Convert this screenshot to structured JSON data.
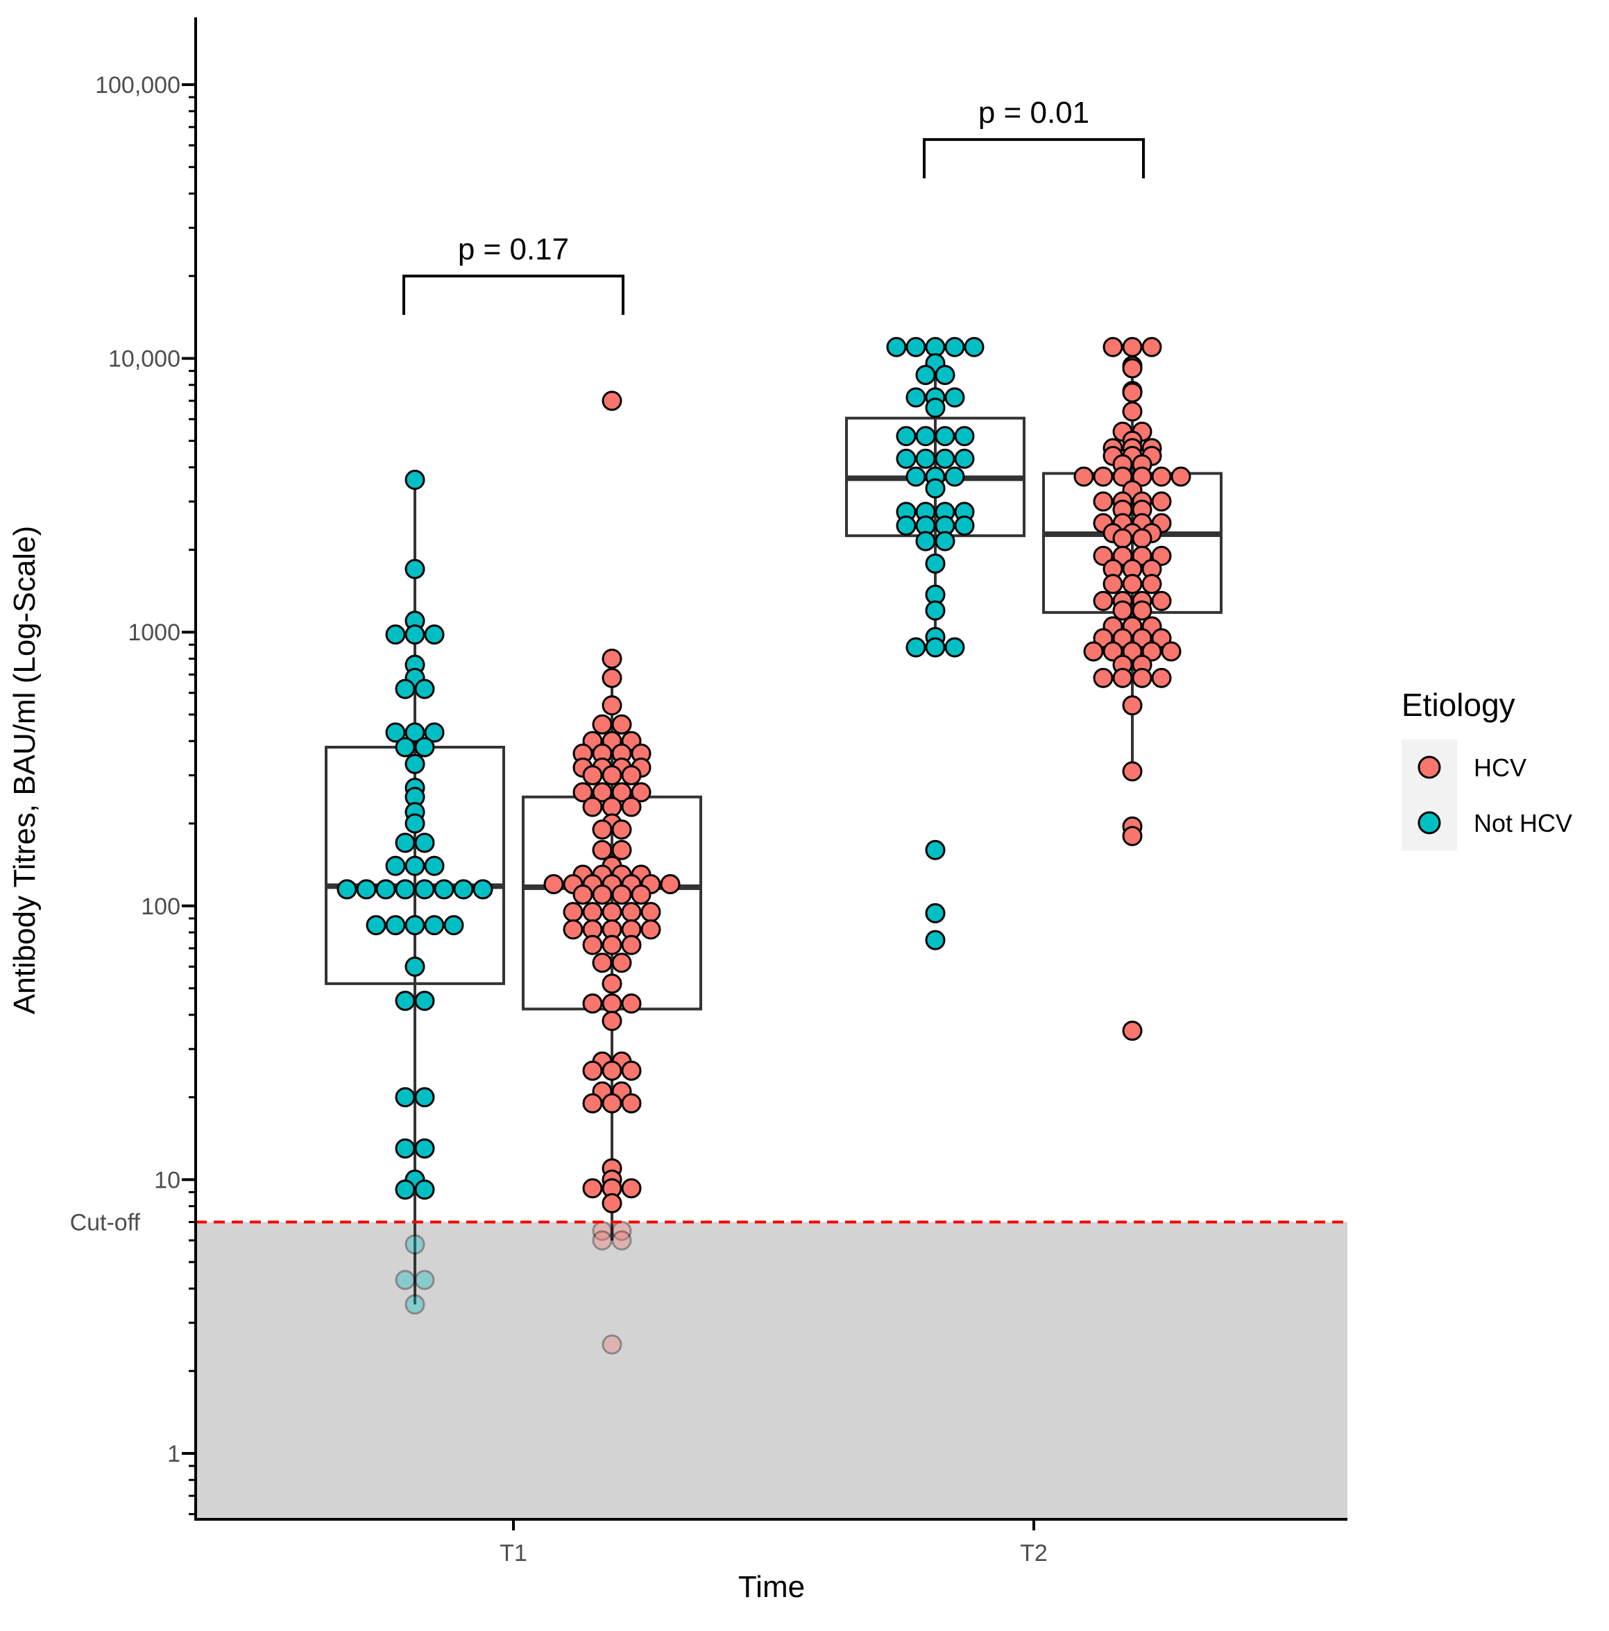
{
  "chart_data": {
    "type": "box-dotplot",
    "title": "",
    "xlabel": "Time",
    "ylabel": "Antibody Titres, BAU/ml (Log-Scale)",
    "yscale": "log10",
    "ylim": [
      0.55,
      180000
    ],
    "categories": [
      "T1",
      "T2"
    ],
    "y_ticks": [
      {
        "value": 1,
        "label": "1"
      },
      {
        "value": 10,
        "label": "10"
      },
      {
        "value": 100,
        "label": "100"
      },
      {
        "value": 1000,
        "label": "1000"
      },
      {
        "value": 10000,
        "label": "10,000"
      },
      {
        "value": 100000,
        "label": "100,000"
      }
    ],
    "cutoff": {
      "value": 7,
      "label": "Cut-off",
      "color": "#ff0000"
    },
    "below_cutoff_shade": "#d3d3d3",
    "legend": {
      "title": "Etiology",
      "entries": [
        {
          "label": "HCV",
          "color": "#f8766d"
        },
        {
          "label": "Not HCV",
          "color": "#00bfc4"
        }
      ]
    },
    "groups": [
      {
        "time": "T1",
        "etiology": "Not HCV",
        "box": {
          "q1": 52,
          "median": 118,
          "q3": 380,
          "whisker_low": 3.5,
          "whisker_high": 3600
        },
        "points": [
          3600,
          1700,
          1100,
          980,
          980,
          980,
          760,
          680,
          620,
          620,
          430,
          430,
          430,
          380,
          380,
          330,
          270,
          250,
          220,
          200,
          170,
          170,
          140,
          140,
          140,
          115,
          115,
          115,
          115,
          115,
          115,
          115,
          115,
          85,
          85,
          85,
          85,
          85,
          60,
          45,
          45,
          20,
          20,
          13,
          13,
          10,
          9.2,
          9.2,
          5.8,
          4.3,
          4.3,
          3.5
        ]
      },
      {
        "time": "T1",
        "etiology": "HCV",
        "box": {
          "q1": 42,
          "median": 117,
          "q3": 250,
          "whisker_low": 6,
          "whisker_high": 800
        },
        "points": [
          7000,
          800,
          680,
          540,
          460,
          460,
          400,
          400,
          400,
          360,
          360,
          360,
          360,
          320,
          320,
          320,
          320,
          300,
          300,
          300,
          260,
          260,
          260,
          260,
          230,
          230,
          230,
          200,
          190,
          190,
          160,
          160,
          140,
          130,
          130,
          130,
          130,
          120,
          120,
          120,
          120,
          120,
          120,
          120,
          110,
          110,
          110,
          110,
          95,
          95,
          95,
          95,
          95,
          82,
          82,
          82,
          82,
          82,
          72,
          72,
          72,
          62,
          62,
          52,
          44,
          44,
          44,
          38,
          27,
          27,
          25,
          25,
          25,
          21,
          21,
          19,
          19,
          19,
          11,
          10,
          9.3,
          9.3,
          9.3,
          8.2,
          6.5,
          6.5,
          6,
          6,
          2.5
        ]
      },
      {
        "time": "T2",
        "etiology": "Not HCV",
        "box": {
          "q1": 2250,
          "median": 3650,
          "q3": 6050,
          "whisker_low": 880,
          "whisker_high": 11000
        },
        "points": [
          11000,
          11000,
          11000,
          11000,
          11000,
          9600,
          8700,
          8700,
          7200,
          7200,
          7200,
          6600,
          5200,
          5200,
          5200,
          5200,
          4300,
          4300,
          4300,
          4300,
          3700,
          3700,
          3700,
          3350,
          2750,
          2750,
          2750,
          2750,
          2450,
          2450,
          2450,
          2450,
          2150,
          2150,
          1780,
          1370,
          1200,
          960,
          880,
          880,
          880,
          160,
          94,
          75
        ]
      },
      {
        "time": "T2",
        "etiology": "HCV",
        "box": {
          "q1": 1180,
          "median": 2280,
          "q3": 3800,
          "whisker_low": 310,
          "whisker_high": 11000
        },
        "points": [
          11000,
          11000,
          11000,
          9400,
          9200,
          7600,
          7500,
          6400,
          5400,
          5400,
          5000,
          4700,
          4700,
          4700,
          4400,
          4400,
          4400,
          4100,
          4100,
          3700,
          3700,
          3700,
          3700,
          3700,
          3700,
          3300,
          3000,
          3000,
          3000,
          3000,
          2800,
          2800,
          2500,
          2500,
          2500,
          2500,
          2300,
          2300,
          2300,
          2200,
          2200,
          1900,
          1900,
          1900,
          1900,
          1700,
          1700,
          1700,
          1500,
          1500,
          1500,
          1300,
          1300,
          1300,
          1300,
          1200,
          1200,
          1050,
          1050,
          1050,
          950,
          950,
          950,
          950,
          850,
          850,
          850,
          850,
          850,
          760,
          760,
          680,
          680,
          680,
          680,
          540,
          310,
          195,
          180,
          35
        ]
      }
    ],
    "comparisons": [
      {
        "time": "T1",
        "label": "p = 0.17",
        "y": 20000
      },
      {
        "time": "T2",
        "label": "p = 0.01",
        "y": 63000
      }
    ]
  }
}
